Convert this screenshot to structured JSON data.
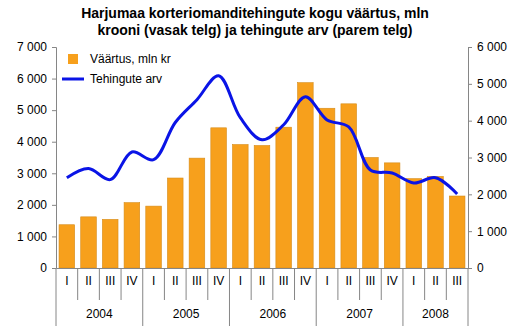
{
  "chart_data": {
    "type": "bar",
    "title": "Harjumaa korteriomanditehingute kogu väärtus, mln krooni (vasak telg) ja tehingute arv (parem telg)",
    "categories": [
      "I",
      "II",
      "III",
      "IV",
      "I",
      "II",
      "III",
      "IV",
      "I",
      "II",
      "III",
      "IV",
      "I",
      "II",
      "III",
      "IV",
      "I",
      "II",
      "III"
    ],
    "groups": [
      {
        "name": "2004",
        "count": 4
      },
      {
        "name": "2005",
        "count": 4
      },
      {
        "name": "2006",
        "count": 4
      },
      {
        "name": "2007",
        "count": 4
      },
      {
        "name": "2008",
        "count": 3
      }
    ],
    "series": [
      {
        "name": "Väärtus, mln kr",
        "type": "bar",
        "color": "#f7a01c",
        "values": [
          1370,
          1620,
          1540,
          2070,
          1960,
          2850,
          3480,
          4440,
          3910,
          3880,
          4460,
          5870,
          5060,
          5200,
          3500,
          3330,
          2830,
          2900,
          2280
        ]
      },
      {
        "name": "Tehingute arv",
        "type": "line",
        "axis": "y2",
        "color": "#0a14e6",
        "values": [
          2450,
          2700,
          2400,
          3150,
          2940,
          3950,
          4570,
          5220,
          4080,
          3480,
          3890,
          4650,
          4020,
          3830,
          2660,
          2580,
          2310,
          2450,
          2010
        ]
      }
    ],
    "ylim": [
      0,
      7000
    ],
    "yticks": [
      0,
      {
        "value": 1000,
        "label": "1 000"
      },
      {
        "value": 2000,
        "label": "2 000"
      },
      {
        "value": 3000,
        "label": "3 000"
      },
      {
        "value": 4000,
        "label": "4 000"
      },
      {
        "value": 5000,
        "label": "5 000"
      },
      {
        "value": 6000,
        "label": "6 000"
      },
      {
        "value": 7000,
        "label": "7 000"
      }
    ],
    "y2lim": [
      0,
      6000
    ],
    "y2ticks": [
      0,
      {
        "value": 1000,
        "label": "1 000"
      },
      {
        "value": 2000,
        "label": "2 000"
      },
      {
        "value": 3000,
        "label": "3 000"
      },
      {
        "value": 4000,
        "label": "4 000"
      },
      {
        "value": 5000,
        "label": "5 000"
      },
      {
        "value": 6000,
        "label": "6 000"
      }
    ],
    "legend": "upper left",
    "grid": false
  }
}
